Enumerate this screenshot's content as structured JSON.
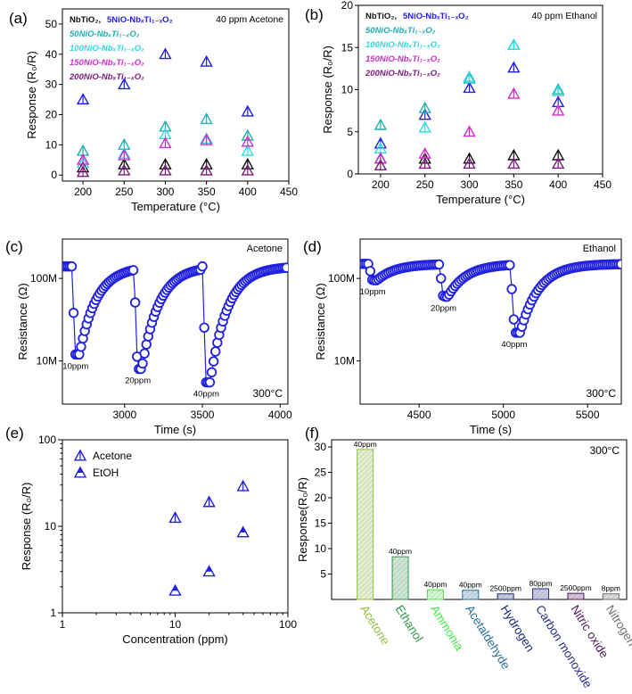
{
  "figure": {
    "colors": {
      "navy": "#1a1a8c",
      "blue": "#2020e0",
      "teal": "#20b0b0",
      "cyan": "#30d8e0",
      "magenta": "#cc30cc",
      "purple": "#7a1a7a",
      "black": "#111111",
      "axis": "#000000"
    }
  },
  "chart_data": [
    {
      "id": "a",
      "type": "scatter",
      "panel_label": "(a)",
      "annotation": "40 ppm Acetone",
      "xlabel": "Temperature (°C)",
      "ylabel": "Response (R₀/R)",
      "xlim": [
        175,
        450
      ],
      "ylim": [
        -2,
        55
      ],
      "xticks": [
        200,
        250,
        300,
        350,
        400,
        450
      ],
      "yticks": [
        0,
        10,
        20,
        30,
        40,
        50
      ],
      "legend_placement": "top-left",
      "x": [
        200,
        250,
        300,
        350,
        400
      ],
      "series": [
        {
          "name": "NbTiO₂",
          "legend_label": "NbTiO₂,",
          "color": "#111111",
          "values": [
            2.5,
            3.5,
            3.5,
            3.5,
            3.5
          ]
        },
        {
          "name": "5NiO-NbₓTi₁₋ₓO₂",
          "legend_label": "5NiO-NbₓTi₁₋ₓO₂",
          "color": "#2020e0",
          "values": [
            25,
            30,
            40,
            37.5,
            21
          ]
        },
        {
          "name": "50NiO-NbₓTi₁₋ₓO₂",
          "legend_label": "50NiO-NbₓTi₁₋ₓO₂",
          "color": "#20b0b0",
          "values": [
            8,
            10,
            16,
            18.5,
            13
          ]
        },
        {
          "name": "100NiO-NbₓTi₁₋ₓO₂",
          "legend_label": "100NiO-NbₓTi₁₋ₓO₂",
          "color": "#30d8e0",
          "values": [
            4,
            7,
            13.5,
            12,
            8
          ]
        },
        {
          "name": "150NiO-NbₓTi₁₋ₓO₂",
          "legend_label": "150NiO-NbₓTi₁₋ₓO₂",
          "color": "#cc30cc",
          "values": [
            5,
            6.5,
            10.5,
            11.5,
            11
          ]
        },
        {
          "name": "200NiO-NbₓTi₁₋ₓO₂",
          "legend_label": "200NiO-NbₓTi₁₋ₓO₂",
          "color": "#7a1a7a",
          "values": [
            1,
            1.5,
            1.5,
            1.5,
            1.5
          ]
        }
      ]
    },
    {
      "id": "b",
      "type": "scatter",
      "panel_label": "(b)",
      "annotation": "40 ppm Ethanol",
      "xlabel": "Temperature (°C)",
      "ylabel": "Response (R₀/R)",
      "xlim": [
        175,
        450
      ],
      "ylim": [
        0,
        20
      ],
      "xticks": [
        200,
        250,
        300,
        350,
        400,
        450
      ],
      "yticks": [
        0,
        5,
        10,
        15,
        20
      ],
      "legend_placement": "top-left",
      "x": [
        200,
        250,
        300,
        350,
        400
      ],
      "series": [
        {
          "name": "NbTiO₂",
          "legend_label": "NbTiO₂,",
          "color": "#111111",
          "values": [
            1.8,
            1.8,
            1.8,
            2.2,
            2.2
          ]
        },
        {
          "name": "5NiO-NbₓTi₁₋ₓO₂",
          "legend_label": "5NiO-NbₓTi₁₋ₓO₂",
          "color": "#2020e0",
          "values": [
            3.6,
            7,
            10.2,
            12.6,
            8.5
          ]
        },
        {
          "name": "50NiO-NbₓTi₁₋ₓO₂",
          "legend_label": "50NiO-NbₓTi₁₋ₓO₂",
          "color": "#20b0b0",
          "values": [
            5.8,
            7.8,
            11.3,
            15.3,
            10
          ]
        },
        {
          "name": "100NiO-NbₓTi₁₋ₓO₂",
          "legend_label": "100NiO-NbₓTi₁₋ₓO₂",
          "color": "#30d8e0",
          "values": [
            3,
            5.5,
            11.5,
            15.3,
            9.8
          ]
        },
        {
          "name": "150NiO-NbₓTi₁₋ₓO₂",
          "legend_label": "150NiO-NbₓTi₁₋ₓO₂",
          "color": "#cc30cc",
          "values": [
            1.8,
            2.4,
            5,
            9.5,
            7.5
          ]
        },
        {
          "name": "200NiO-NbₓTi₁₋ₓO₂",
          "legend_label": "200NiO-NbₓTi₁₋ₓO₂",
          "color": "#7a1a7a",
          "values": [
            1,
            1.2,
            1.2,
            1.2,
            1.2
          ]
        }
      ]
    },
    {
      "id": "c",
      "type": "line",
      "panel_label": "(c)",
      "annotation": "Acetone",
      "temperature_label": "300°C",
      "xlabel": "Time (s)",
      "ylabel": "Resistance (Ω)",
      "xlim": [
        2600,
        4050
      ],
      "ylim": [
        3000000,
        300000000
      ],
      "yscale": "log",
      "xticks": [
        3000,
        3500,
        4000
      ],
      "ytick_values": [
        10000000,
        100000000
      ],
      "ytick_labels": [
        "10M",
        "100M"
      ],
      "baseline": 140000000,
      "series": [
        {
          "name": "5NiO-NbₓTi₁₋ₓO₂",
          "color": "#2020e0"
        }
      ],
      "pulses": [
        {
          "label": "10ppm",
          "start": 2660,
          "end": 2710,
          "min": 12000000
        },
        {
          "label": "20ppm",
          "start": 3060,
          "end": 3110,
          "min": 8000000
        },
        {
          "label": "40ppm",
          "start": 3500,
          "end": 3550,
          "min": 5500000
        }
      ]
    },
    {
      "id": "d",
      "type": "line",
      "panel_label": "(d)",
      "annotation": "Ethanol",
      "temperature_label": "300°C",
      "xlabel": "Time (s)",
      "ylabel": "Resistance (Ω)",
      "xlim": [
        4150,
        5700
      ],
      "ylim": [
        3000000,
        300000000
      ],
      "yscale": "log",
      "xticks": [
        4500,
        5000,
        5500
      ],
      "ytick_values": [
        10000000,
        100000000
      ],
      "ytick_labels": [
        "10M",
        "100M"
      ],
      "baseline": 150000000,
      "series": [
        {
          "name": "5NiO-NbₓTi₁₋ₓO₂",
          "color": "#2020e0"
        }
      ],
      "pulses": [
        {
          "label": "10ppm",
          "start": 4200,
          "end": 4250,
          "min": 95000000
        },
        {
          "label": "20ppm",
          "start": 4620,
          "end": 4670,
          "min": 60000000
        },
        {
          "label": "40ppm",
          "start": 5040,
          "end": 5100,
          "min": 22000000
        }
      ]
    },
    {
      "id": "e",
      "type": "scatter",
      "panel_label": "(e)",
      "xlabel": "Concentration  (ppm)",
      "ylabel": "Response (R₀/R)",
      "xscale": "log",
      "yscale": "log",
      "xlim": [
        1,
        100
      ],
      "ylim": [
        1,
        100
      ],
      "xtick_values": [
        1,
        10,
        100
      ],
      "xtick_labels": [
        "1",
        "10",
        "100"
      ],
      "ytick_values": [
        1,
        10,
        100
      ],
      "ytick_labels": [
        "1",
        "10",
        "100"
      ],
      "legend_placement": "top-left",
      "x": [
        10,
        20,
        40
      ],
      "series": [
        {
          "name": "Acetone",
          "color": "#2020e0",
          "marker": "open-triangle",
          "values": [
            12.5,
            19,
            29
          ]
        },
        {
          "name": "EtOH",
          "color": "#2020e0",
          "marker": "half-filled-triangle",
          "values": [
            1.8,
            3,
            8.5
          ]
        }
      ]
    },
    {
      "id": "f",
      "type": "bar",
      "panel_label": "(f)",
      "annotation": "300°C",
      "ylabel": "Response(R₀/R)",
      "ylim": [
        0,
        30
      ],
      "yticks": [
        5,
        10,
        15,
        20,
        25,
        30
      ],
      "categories": [
        "Acetone",
        "Ethanol",
        "Ammonia",
        "Acetaldehyde",
        "Hydrogen",
        "Carbon monoxide",
        "Nitric oxide",
        "Nitrogen dioxide"
      ],
      "values": [
        29.5,
        8.4,
        1.9,
        1.8,
        1.1,
        2.1,
        1.2,
        1.1
      ],
      "data_labels": [
        "40ppm",
        "40ppm",
        "40ppm",
        "40ppm",
        "2500ppm",
        "80ppm",
        "2500ppm",
        "8ppm"
      ],
      "colors": [
        "#8fbf3f",
        "#2e9a4a",
        "#46e84a",
        "#2a6e9a",
        "#1a2a80",
        "#2a2a8a",
        "#4a1a5a",
        "#707070"
      ]
    }
  ]
}
